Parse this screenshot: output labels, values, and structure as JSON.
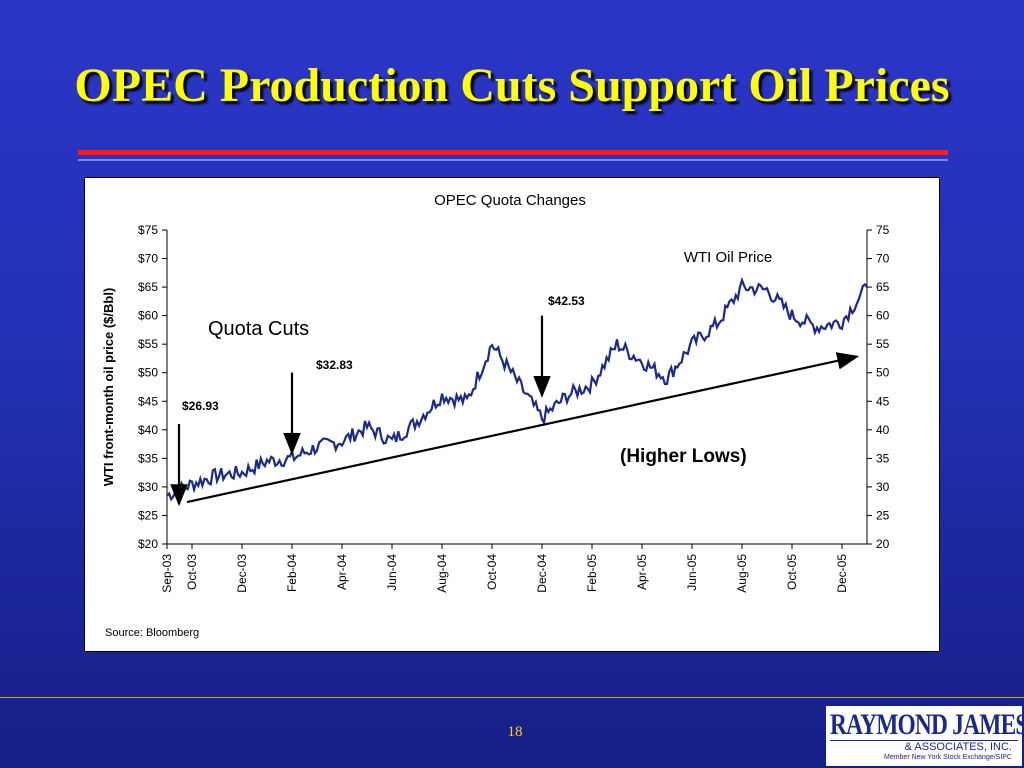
{
  "slide": {
    "title": "OPEC Production Cuts Support Oil Prices",
    "page_number": "18"
  },
  "logo": {
    "name": "RAYMOND JAMES",
    "subtitle": "& ASSOCIATES, INC.",
    "tagline": "Member New York Stock Exchange/SIPC"
  },
  "chart_data": {
    "type": "line",
    "title": "OPEC Quota Changes",
    "ylabel": "WTI front-month oil price ($/Bbl)",
    "xlabel": "",
    "source": "Source: Bloomberg",
    "ylim": [
      20,
      75
    ],
    "y_step": 5,
    "x_ticks": [
      "Sep-03",
      "Oct-03",
      "Dec-03",
      "Feb-04",
      "Apr-04",
      "Jun-04",
      "Aug-04",
      "Oct-04",
      "Dec-04",
      "Feb-05",
      "Apr-05",
      "Jun-05",
      "Aug-05",
      "Oct-05",
      "Dec-05"
    ],
    "series": [
      {
        "name": "WTI Oil Price",
        "color": "#1c2a8a",
        "x": [
          "Sep-03",
          "Oct-03",
          "Nov-03",
          "Dec-03",
          "Jan-04",
          "Feb-04",
          "Mar-04",
          "Apr-04",
          "May-04",
          "Jun-04",
          "Jul-04",
          "Aug-04",
          "Sep-04",
          "Oct-04",
          "Nov-04",
          "Dec-04",
          "Jan-05",
          "Feb-05",
          "Mar-05",
          "Apr-05",
          "May-05",
          "Jun-05",
          "Jul-05",
          "Aug-05",
          "Sep-05",
          "Oct-05",
          "Nov-05",
          "Dec-05",
          "Jan-06"
        ],
        "values": [
          28.5,
          30.5,
          32,
          32.5,
          34.5,
          35,
          37,
          38,
          40.5,
          38,
          41.5,
          46,
          45,
          55,
          48.5,
          42,
          46,
          48,
          55,
          52,
          49,
          55,
          58.5,
          65,
          64.5,
          60,
          58,
          59,
          65
        ]
      }
    ],
    "trend_line": {
      "from": [
        "Sep-03",
        27
      ],
      "to": [
        "Jan-06",
        53
      ],
      "label": "(Higher Lows)"
    },
    "annotations": [
      {
        "label": "Quota Cuts"
      },
      {
        "label": "$26.93",
        "at": "Sep-03",
        "y": 27
      },
      {
        "label": "$32.83",
        "at": "Feb-04",
        "y": 36
      },
      {
        "label": "$42.53",
        "at": "Dec-04",
        "y": 46
      }
    ],
    "series_label": "WTI Oil Price",
    "grid": false,
    "legend": "none"
  }
}
